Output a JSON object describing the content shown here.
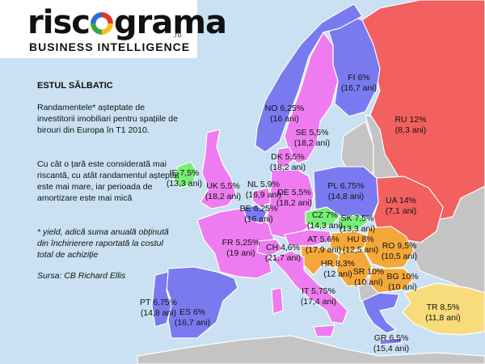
{
  "logo": {
    "brand_before": "risc",
    "brand_after": "grama",
    "domain": ".ro",
    "tagline": "BUSINESS INTELLIGENCE"
  },
  "legend": {
    "title": "ESTUL SĂLBATIC",
    "intro": "Randamentele* așteptate de investitorii imobiliari pentru spațiile de birouri din Europa în T1 2010.",
    "explanation": "Cu cât o țară este considerată mai riscantă, cu atât randamentul așteptat este mai mare, iar perioada de amortizare este mai mică",
    "footnote": "* yield, adică suma anuală obținută din închirierere raportată la costul total  de achiziție",
    "source": "Sursa: CB Richard Ellis"
  },
  "colors": {
    "sea": "#c9e1f2",
    "other_land": "#c4c4c4",
    "magenta": "#ee7cf0",
    "blue": "#7a7af0",
    "red": "#f26060",
    "orange": "#f4a83a",
    "yellow": "#f8dc7c",
    "green": "#78ee78",
    "border": "#ffffff"
  },
  "countries": [
    {
      "code": "FI",
      "yield": "6%",
      "years": "(16,7 ani)",
      "color": "blue"
    },
    {
      "code": "NO",
      "yield": "6,25%",
      "years": "(16 ani)",
      "color": "blue"
    },
    {
      "code": "SE",
      "yield": "5,5%",
      "years": "(18,2 ani)",
      "color": "magenta"
    },
    {
      "code": "DK",
      "yield": "5,5%",
      "years": "(18,2 ani)",
      "color": "magenta"
    },
    {
      "code": "RU",
      "yield": "12%",
      "years": "(8,3 ani)",
      "color": "red"
    },
    {
      "code": "IE",
      "yield": "7,5%",
      "years": "(13,3 ani)",
      "color": "green"
    },
    {
      "code": "UK",
      "yield": "5,5%",
      "years": "(18,2 ani)",
      "color": "magenta"
    },
    {
      "code": "NL",
      "yield": "5,9%",
      "years": "(16,9 ani)",
      "color": "magenta"
    },
    {
      "code": "BE",
      "yield": "6,25%",
      "years": "(16 ani)",
      "color": "blue"
    },
    {
      "code": "DE",
      "yield": "5,5%",
      "years": "(18,2 ani)",
      "color": "magenta"
    },
    {
      "code": "PL",
      "yield": "6,75%",
      "years": "(14,8 ani)",
      "color": "blue"
    },
    {
      "code": "UA",
      "yield": "14%",
      "years": "(7,1 ani)",
      "color": "red"
    },
    {
      "code": "CZ",
      "yield": "7%",
      "years": "(14,3 ani)",
      "color": "green"
    },
    {
      "code": "SK",
      "yield": "7,5%",
      "years": "(13,3 ani)",
      "color": "green"
    },
    {
      "code": "FR",
      "yield": "5,25%",
      "years": "(19 ani)",
      "color": "magenta"
    },
    {
      "code": "CH",
      "yield": "4,6%",
      "years": "(21,7 ani)",
      "color": "magenta"
    },
    {
      "code": "AT",
      "yield": "5,6%",
      "years": "(17,9 ani)",
      "color": "magenta"
    },
    {
      "code": "HU",
      "yield": "8%",
      "years": "(12,5 ani)",
      "color": "orange"
    },
    {
      "code": "RO",
      "yield": "9,5%",
      "years": "(10,5 ani)",
      "color": "orange"
    },
    {
      "code": "HR",
      "yield": "8,3%",
      "years": "(12 ani)",
      "color": "orange"
    },
    {
      "code": "SR",
      "yield": "10%",
      "years": "(10 ani)",
      "color": "orange"
    },
    {
      "code": "BG",
      "yield": "10%",
      "years": "(10 ani)",
      "color": "orange"
    },
    {
      "code": "IT",
      "yield": "5,75%",
      "years": "(17,4 ani)",
      "color": "magenta"
    },
    {
      "code": "PT",
      "yield": "6,75%",
      "years": "(14,8 ani)",
      "color": "blue"
    },
    {
      "code": "ES",
      "yield": "6%",
      "years": "(16,7 ani)",
      "color": "blue"
    },
    {
      "code": "TR",
      "yield": "8,5%",
      "years": "(11,8 ani)",
      "color": "yellow"
    },
    {
      "code": "GR",
      "yield": "6,5%",
      "years": "(15,4 ani)",
      "color": "blue"
    }
  ]
}
